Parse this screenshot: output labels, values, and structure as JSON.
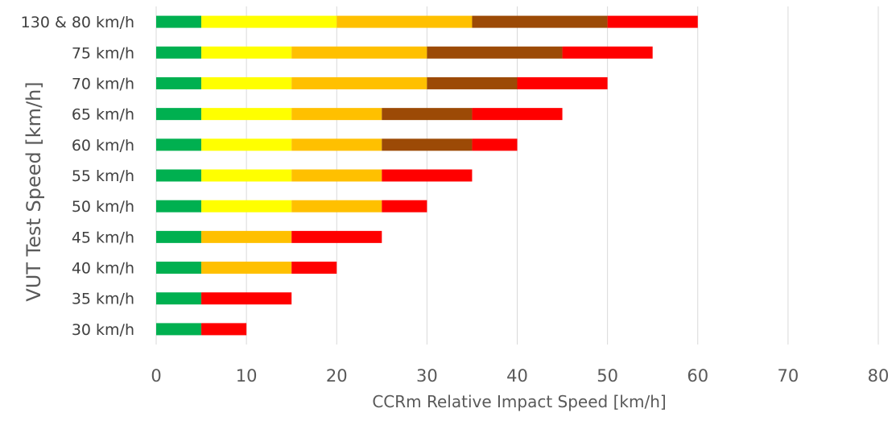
{
  "chart_data": {
    "type": "bar",
    "orientation": "horizontal",
    "stacked": true,
    "title": "",
    "xlabel": "CCRm Relative Impact Speed [km/h]",
    "ylabel": "VUT Test Speed [km/h]",
    "xlim": [
      0,
      80
    ],
    "xticks": [
      "0",
      "10",
      "20",
      "30",
      "40",
      "50",
      "60",
      "70",
      "80"
    ],
    "grid": "vertical",
    "legend": "none",
    "categories": [
      "130 & 80 km/h",
      "75 km/h",
      "70 km/h",
      "65 km/h",
      "60 km/h",
      "55 km/h",
      "50 km/h",
      "45 km/h",
      "40 km/h",
      "35 km/h",
      "30 km/h"
    ],
    "colors": [
      "#00B050",
      "#FFFF00",
      "#FFC000",
      "#9C4A06",
      "#FF0000"
    ],
    "series": [
      {
        "color": "#00B050",
        "values": [
          5,
          5,
          5,
          5,
          5,
          5,
          5,
          5,
          5,
          5,
          5
        ]
      },
      {
        "color": "#FFFF00",
        "values": [
          15,
          10,
          10,
          10,
          10,
          10,
          10,
          0,
          0,
          0,
          0
        ]
      },
      {
        "color": "#FFC000",
        "values": [
          15,
          15,
          15,
          10,
          10,
          10,
          10,
          10,
          10,
          0,
          0
        ]
      },
      {
        "color": "#9C4A06",
        "values": [
          15,
          15,
          10,
          10,
          10,
          0,
          0,
          0,
          0,
          0,
          0
        ]
      },
      {
        "color": "#FF0000",
        "values": [
          10,
          10,
          10,
          10,
          5,
          10,
          5,
          10,
          5,
          10,
          5
        ]
      }
    ]
  }
}
